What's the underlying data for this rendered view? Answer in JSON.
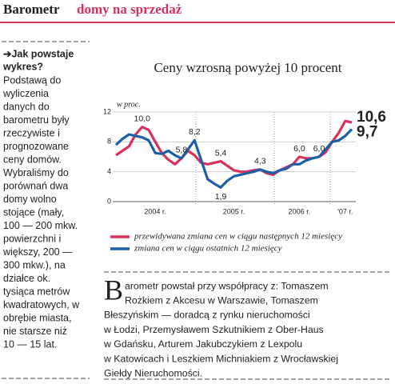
{
  "header": {
    "title": "Barometr",
    "subtitle": "domy na sprzedaż"
  },
  "sidebar": {
    "heading_lines": [
      "➔Jak powstaje",
      "wykres?"
    ],
    "lines": [
      "Podstawą do",
      "wyliczenia",
      "danych do",
      "barometru były",
      "rzeczywiste i",
      "prognozowane",
      "ceny domów.",
      "Wybraliśmy do",
      "porównań dwa",
      "domy wolno",
      "stojące (mały,",
      "100 — 200 mkw.",
      "powierzchni i",
      "większy, 200 —",
      "300 mkw.), na",
      "działce ok.",
      "tysiąca metrów",
      "kwadratowych, w",
      "obrębie miasta,",
      "nie starsze niż",
      "10 — 15 lat."
    ]
  },
  "chart_data": {
    "type": "line",
    "title": "Ceny wzrosną powyżej 10 procent",
    "y_label": "w proc.",
    "categories": [
      null,
      null,
      null,
      null,
      null,
      null,
      "2004 r.",
      null,
      null,
      null,
      null,
      null,
      null,
      null,
      null,
      null,
      null,
      null,
      "2005 r.",
      null,
      null,
      null,
      null,
      null,
      null,
      null,
      null,
      null,
      "2006 r.",
      null,
      null,
      null,
      null,
      null,
      null,
      "'07 r.",
      null
    ],
    "ylim": [
      0,
      12
    ],
    "yticks": [
      0,
      4,
      8,
      12
    ],
    "grid": true,
    "series": [
      {
        "name": "przewidywana zmiana cen w ciągu następnych 12 miesięcy",
        "color": "#d8315b",
        "values": [
          6.2,
          6.8,
          7.4,
          9.0,
          10.0,
          9.6,
          8.0,
          6.5,
          5.6,
          5.0,
          5.8,
          6.8,
          6.2,
          5.2,
          5.0,
          5.2,
          5.4,
          4.8,
          4.2,
          4.0,
          4.0,
          4.2,
          4.3,
          3.8,
          3.6,
          4.2,
          4.6,
          5.0,
          6.0,
          5.8,
          5.8,
          6.0,
          6.6,
          8.0,
          9.2,
          10.8,
          10.6
        ],
        "value_labels": [
          null,
          null,
          null,
          null,
          "10,0",
          null,
          null,
          null,
          null,
          null,
          null,
          null,
          null,
          null,
          null,
          null,
          "5,4",
          null,
          null,
          null,
          null,
          null,
          null,
          null,
          null,
          null,
          null,
          null,
          "6,0",
          null,
          null,
          null,
          null,
          null,
          null,
          null,
          "10,6"
        ]
      },
      {
        "name": "zmiana cen w ciągu ostatnich 12 miesięcy",
        "color": "#1f5fa8",
        "values": [
          7.6,
          8.4,
          9.0,
          8.8,
          8.6,
          8.2,
          6.5,
          6.4,
          6.8,
          6.2,
          5.8,
          7.0,
          8.2,
          5.6,
          3.0,
          2.4,
          1.9,
          2.8,
          3.4,
          3.6,
          3.8,
          4.0,
          4.3,
          4.0,
          3.8,
          4.2,
          4.4,
          5.0,
          5.0,
          5.5,
          5.8,
          6.0,
          7.0,
          8.0,
          8.2,
          8.8,
          9.7
        ],
        "value_labels": [
          null,
          null,
          null,
          null,
          null,
          null,
          null,
          null,
          null,
          null,
          "5,8",
          null,
          "8,2",
          null,
          null,
          null,
          "1,9",
          null,
          null,
          null,
          null,
          null,
          "4,3",
          null,
          null,
          null,
          null,
          null,
          null,
          null,
          null,
          "6,0",
          null,
          null,
          null,
          null,
          "9,7"
        ]
      }
    ]
  },
  "footer": {
    "drop_cap": "B",
    "lines": [
      "arometr powstał przy współpracy z: Tomaszem",
      "Rożkiem z Akcesu w Warszawie, Tomaszem",
      "Błeszyńskim — doradcą z rynku nieruchomości",
      "w Łodzi, Przemysławem Szkutnikiem z Ober-Haus",
      "w Gdańsku, Arturem Jakubczykiem z Lexpolu",
      "w Katowicach i Leszkiem Michniakiem z Wrocławskiej",
      "Giełdy Nieruchomości."
    ]
  }
}
